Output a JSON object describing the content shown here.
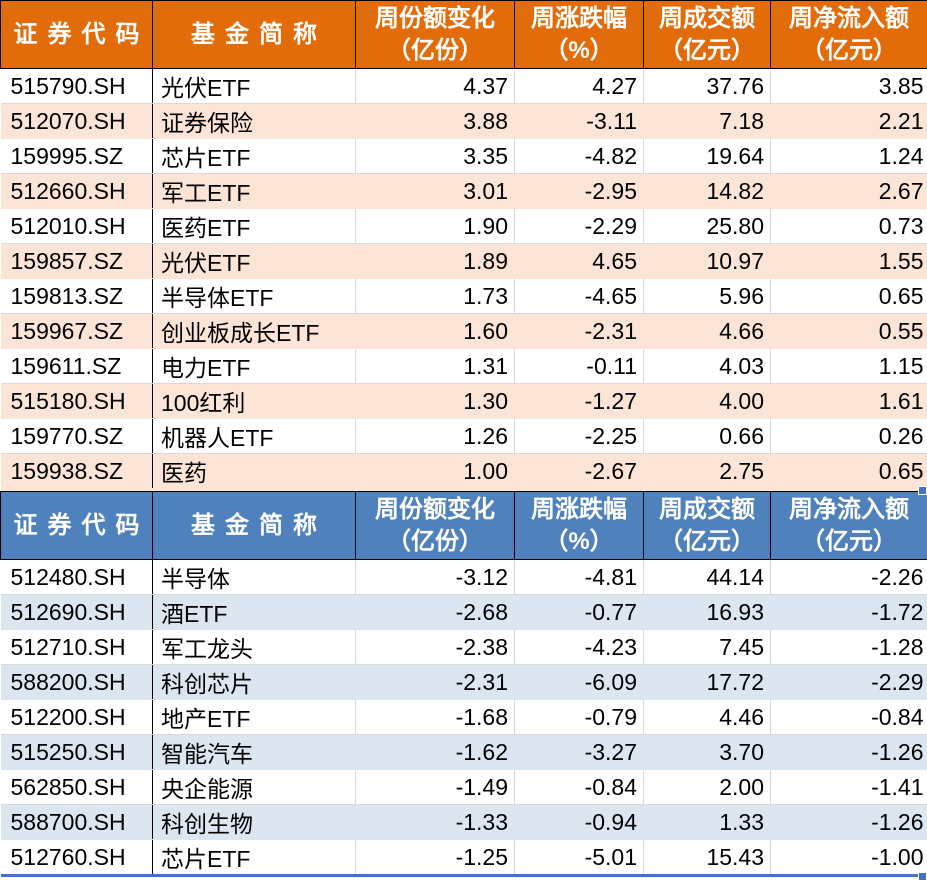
{
  "colors": {
    "inflow_header_bg": "#E36C0A",
    "inflow_row_alt_bg": "#FCE4D6",
    "outflow_header_bg": "#4F81BD",
    "outflow_row_alt_bg": "#DCE6F1",
    "selection_border": "#4472C4",
    "grid_line": "#D9D9D9",
    "header_text": "#FFFFFF",
    "body_text": "#000000"
  },
  "columns": [
    {
      "key": "code",
      "lines": [
        "证券代码"
      ]
    },
    {
      "key": "name",
      "lines": [
        "基金简称"
      ]
    },
    {
      "key": "share_change",
      "lines": [
        "周份额变化",
        "（亿份）"
      ]
    },
    {
      "key": "pct_change",
      "lines": [
        "周涨跌幅",
        "（%）"
      ]
    },
    {
      "key": "turnover",
      "lines": [
        "周成交额",
        "（亿元）"
      ]
    },
    {
      "key": "net_inflow",
      "lines": [
        "周净流入额",
        "（亿元）"
      ]
    }
  ],
  "tables": [
    {
      "name": "share-increase-table",
      "theme": "orange",
      "rows": [
        {
          "code": "515790.SH",
          "name": "光伏ETF",
          "share_change": "4.37",
          "pct_change": "4.27",
          "turnover": "37.76",
          "net_inflow": "3.85"
        },
        {
          "code": "512070.SH",
          "name": "证券保险",
          "share_change": "3.88",
          "pct_change": "-3.11",
          "turnover": "7.18",
          "net_inflow": "2.21"
        },
        {
          "code": "159995.SZ",
          "name": "芯片ETF",
          "share_change": "3.35",
          "pct_change": "-4.82",
          "turnover": "19.64",
          "net_inflow": "1.24"
        },
        {
          "code": "512660.SH",
          "name": "军工ETF",
          "share_change": "3.01",
          "pct_change": "-2.95",
          "turnover": "14.82",
          "net_inflow": "2.67"
        },
        {
          "code": "512010.SH",
          "name": "医药ETF",
          "share_change": "1.90",
          "pct_change": "-2.29",
          "turnover": "25.80",
          "net_inflow": "0.73"
        },
        {
          "code": "159857.SZ",
          "name": "光伏ETF",
          "share_change": "1.89",
          "pct_change": "4.65",
          "turnover": "10.97",
          "net_inflow": "1.55"
        },
        {
          "code": "159813.SZ",
          "name": "半导体ETF",
          "share_change": "1.73",
          "pct_change": "-4.65",
          "turnover": "5.96",
          "net_inflow": "0.65"
        },
        {
          "code": "159967.SZ",
          "name": "创业板成长ETF",
          "share_change": "1.60",
          "pct_change": "-2.31",
          "turnover": "4.66",
          "net_inflow": "0.55"
        },
        {
          "code": "159611.SZ",
          "name": "电力ETF",
          "share_change": "1.31",
          "pct_change": "-0.11",
          "turnover": "4.03",
          "net_inflow": "1.15"
        },
        {
          "code": "515180.SH",
          "name": "100红利",
          "share_change": "1.30",
          "pct_change": "-1.27",
          "turnover": "4.00",
          "net_inflow": "1.61"
        },
        {
          "code": "159770.SZ",
          "name": "机器人ETF",
          "share_change": "1.26",
          "pct_change": "-2.25",
          "turnover": "0.66",
          "net_inflow": "0.26"
        },
        {
          "code": "159938.SZ",
          "name": "医药",
          "share_change": "1.00",
          "pct_change": "-2.67",
          "turnover": "2.75",
          "net_inflow": "0.65"
        }
      ]
    },
    {
      "name": "share-decrease-table",
      "theme": "blue",
      "rows": [
        {
          "code": "512480.SH",
          "name": "半导体",
          "share_change": "-3.12",
          "pct_change": "-4.81",
          "turnover": "44.14",
          "net_inflow": "-2.26"
        },
        {
          "code": "512690.SH",
          "name": "酒ETF",
          "share_change": "-2.68",
          "pct_change": "-0.77",
          "turnover": "16.93",
          "net_inflow": "-1.72"
        },
        {
          "code": "512710.SH",
          "name": "军工龙头",
          "share_change": "-2.38",
          "pct_change": "-4.23",
          "turnover": "7.45",
          "net_inflow": "-1.28"
        },
        {
          "code": "588200.SH",
          "name": "科创芯片",
          "share_change": "-2.31",
          "pct_change": "-6.09",
          "turnover": "17.72",
          "net_inflow": "-2.29"
        },
        {
          "code": "512200.SH",
          "name": "地产ETF",
          "share_change": "-1.68",
          "pct_change": "-0.79",
          "turnover": "4.46",
          "net_inflow": "-0.84"
        },
        {
          "code": "515250.SH",
          "name": "智能汽车",
          "share_change": "-1.62",
          "pct_change": "-3.27",
          "turnover": "3.70",
          "net_inflow": "-1.26"
        },
        {
          "code": "562850.SH",
          "name": "央企能源",
          "share_change": "-1.49",
          "pct_change": "-0.84",
          "turnover": "2.00",
          "net_inflow": "-1.41"
        },
        {
          "code": "588700.SH",
          "name": "科创生物",
          "share_change": "-1.33",
          "pct_change": "-0.94",
          "turnover": "1.33",
          "net_inflow": "-1.26"
        },
        {
          "code": "512760.SH",
          "name": "芯片ETF",
          "share_change": "-1.25",
          "pct_change": "-5.01",
          "turnover": "15.43",
          "net_inflow": "-1.00"
        }
      ]
    }
  ]
}
